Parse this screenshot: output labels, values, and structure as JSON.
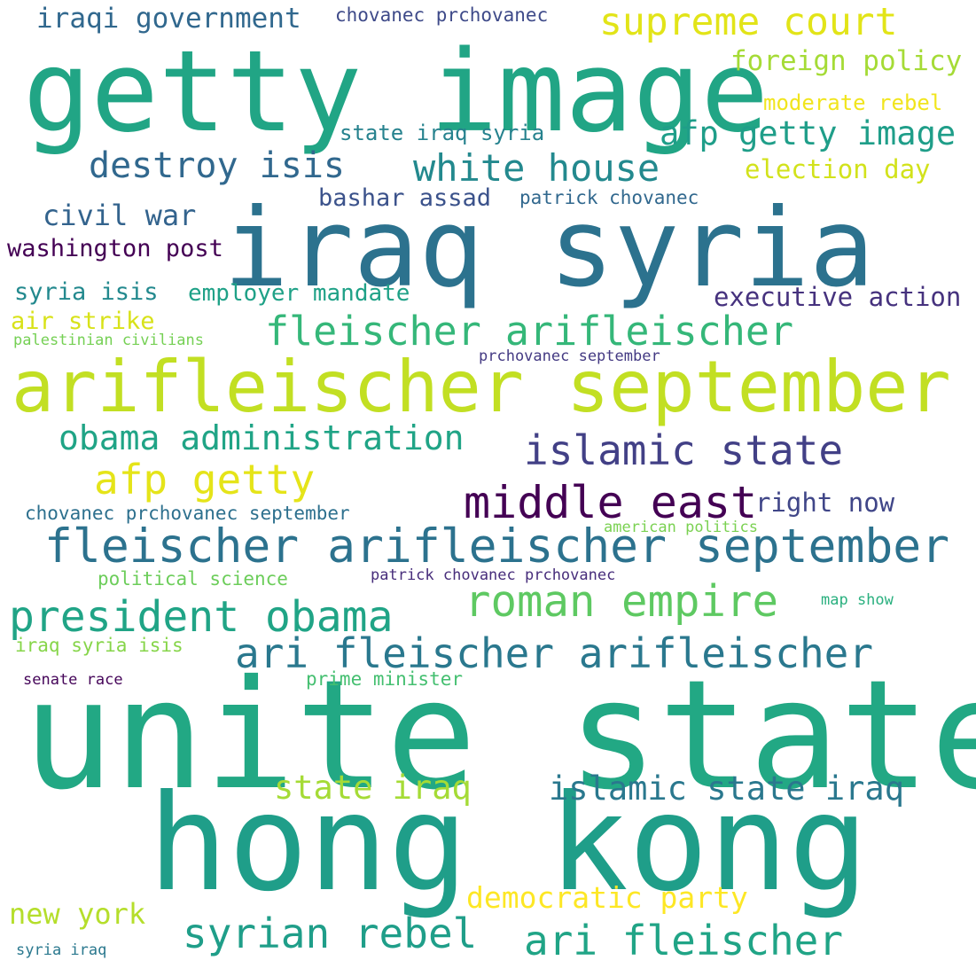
{
  "words": [
    {
      "text": "unite state",
      "color": "#22a884"
    },
    {
      "text": "hong kong",
      "color": "#1f9e89"
    },
    {
      "text": "getty image",
      "color": "#21a585"
    },
    {
      "text": "iraq syria",
      "color": "#2c728e"
    },
    {
      "text": "arifleischer september",
      "color": "#c2df23"
    },
    {
      "text": "fleischer arifleischer september",
      "color": "#2c728e"
    },
    {
      "text": "supreme court",
      "color": "#e2e418"
    },
    {
      "text": "white house",
      "color": "#23898e"
    },
    {
      "text": "fleischer arifleischer",
      "color": "#35b779"
    },
    {
      "text": "destroy isis",
      "color": "#31688e"
    },
    {
      "text": "islamic state",
      "color": "#424086"
    },
    {
      "text": "obama administration",
      "color": "#20a486"
    },
    {
      "text": "afp getty",
      "color": "#e5e419"
    },
    {
      "text": "middle east",
      "color": "#440154"
    },
    {
      "text": "president obama",
      "color": "#20a486"
    },
    {
      "text": "roman empire",
      "color": "#5ec962"
    },
    {
      "text": "ari fleischer arifleischer",
      "color": "#2a788e"
    },
    {
      "text": "syrian rebel",
      "color": "#1f9e89"
    },
    {
      "text": "ari fleischer",
      "color": "#20a486"
    },
    {
      "text": "state iraq",
      "color": "#a5db36"
    },
    {
      "text": "islamic state iraq",
      "color": "#2a788e"
    },
    {
      "text": "afp getty image",
      "color": "#1f9e89"
    },
    {
      "text": "iraqi government",
      "color": "#31688e"
    },
    {
      "text": "foreign policy",
      "color": "#a5db36"
    },
    {
      "text": "civil war",
      "color": "#33638d"
    },
    {
      "text": "democratic party",
      "color": "#fde725"
    },
    {
      "text": "new york",
      "color": "#b5de2b"
    },
    {
      "text": "washington post",
      "color": "#440154"
    },
    {
      "text": "election day",
      "color": "#d2e21b"
    },
    {
      "text": "executive action",
      "color": "#46327e"
    },
    {
      "text": "right now",
      "color": "#404688"
    },
    {
      "text": "bashar assad",
      "color": "#3b528b"
    },
    {
      "text": "employer mandate",
      "color": "#1fa187"
    },
    {
      "text": "syria isis",
      "color": "#23898e"
    },
    {
      "text": "air strike",
      "color": "#d8e219"
    },
    {
      "text": "moderate rebel",
      "color": "#f1e51d"
    },
    {
      "text": "state iraq syria",
      "color": "#26828e"
    },
    {
      "text": "chovanec prchovanec",
      "color": "#3e4a89"
    },
    {
      "text": "patrick chovanec",
      "color": "#31688e"
    },
    {
      "text": "chovanec prchovanec september",
      "color": "#2d708e"
    },
    {
      "text": "iraq syria isis",
      "color": "#86d549"
    },
    {
      "text": "prime minister",
      "color": "#44bf70"
    },
    {
      "text": "political science",
      "color": "#6ccd5a"
    },
    {
      "text": "palestinian civilians",
      "color": "#75d054"
    },
    {
      "text": "prchovanec september",
      "color": "#443a83"
    },
    {
      "text": "american politics",
      "color": "#7ad151"
    },
    {
      "text": "patrick chovanec prchovanec",
      "color": "#472d7b"
    },
    {
      "text": "map show",
      "color": "#2ab07f"
    },
    {
      "text": "senate race",
      "color": "#450559"
    },
    {
      "text": "syria iraq",
      "color": "#2a788e"
    }
  ]
}
